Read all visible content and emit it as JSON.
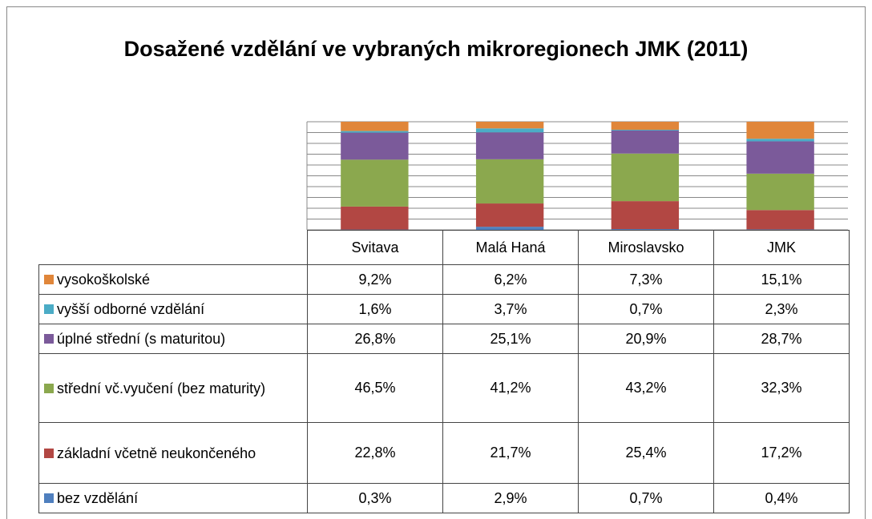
{
  "chart_data": {
    "type": "bar",
    "stacking": "percent",
    "title": "Dosažené vzdělání ve vybraných mikroregionech JMK (2011)",
    "categories": [
      "Svitava",
      "Malá Haná",
      "Miroslavsko",
      "JMK"
    ],
    "ylim": [
      0,
      100
    ],
    "yticks": [
      0,
      10,
      20,
      30,
      40,
      50,
      60,
      70,
      80,
      90,
      100
    ],
    "grid": true,
    "data_table": true,
    "series": [
      {
        "name": "bez vzdělání",
        "color": "#4f7fbe",
        "values": [
          0.3,
          2.9,
          0.7,
          0.4
        ],
        "value_labels": [
          "0,3%",
          "2,9%",
          "0,7%",
          "0,4%"
        ]
      },
      {
        "name": "základní včetně neukončeného",
        "color": "#b24743",
        "values": [
          22.8,
          21.7,
          25.4,
          17.2
        ],
        "value_labels": [
          "22,8%",
          "21,7%",
          "25,4%",
          "17,2%"
        ]
      },
      {
        "name": "střední vč.vyučení (bez maturity)",
        "color": "#8ba84e",
        "values": [
          46.5,
          41.2,
          43.2,
          32.3
        ],
        "value_labels": [
          "46,5%",
          "41,2%",
          "43,2%",
          "32,3%"
        ]
      },
      {
        "name": "úplné střední (s maturitou)",
        "color": "#7b5a9a",
        "values": [
          26.8,
          25.1,
          20.9,
          28.7
        ],
        "value_labels": [
          "26,8%",
          "25,1%",
          "20,9%",
          "28,7%"
        ]
      },
      {
        "name": "vyšší odborné vzdělání",
        "color": "#4bacc6",
        "values": [
          1.6,
          3.7,
          0.7,
          2.3
        ],
        "value_labels": [
          "1,6%",
          "3,7%",
          "0,7%",
          "2,3%"
        ]
      },
      {
        "name": "vysokoškolské",
        "color": "#e0863a",
        "values": [
          9.2,
          6.2,
          7.3,
          15.1
        ],
        "value_labels": [
          "9,2%",
          "6,2%",
          "7,3%",
          "15,1%"
        ]
      }
    ]
  }
}
